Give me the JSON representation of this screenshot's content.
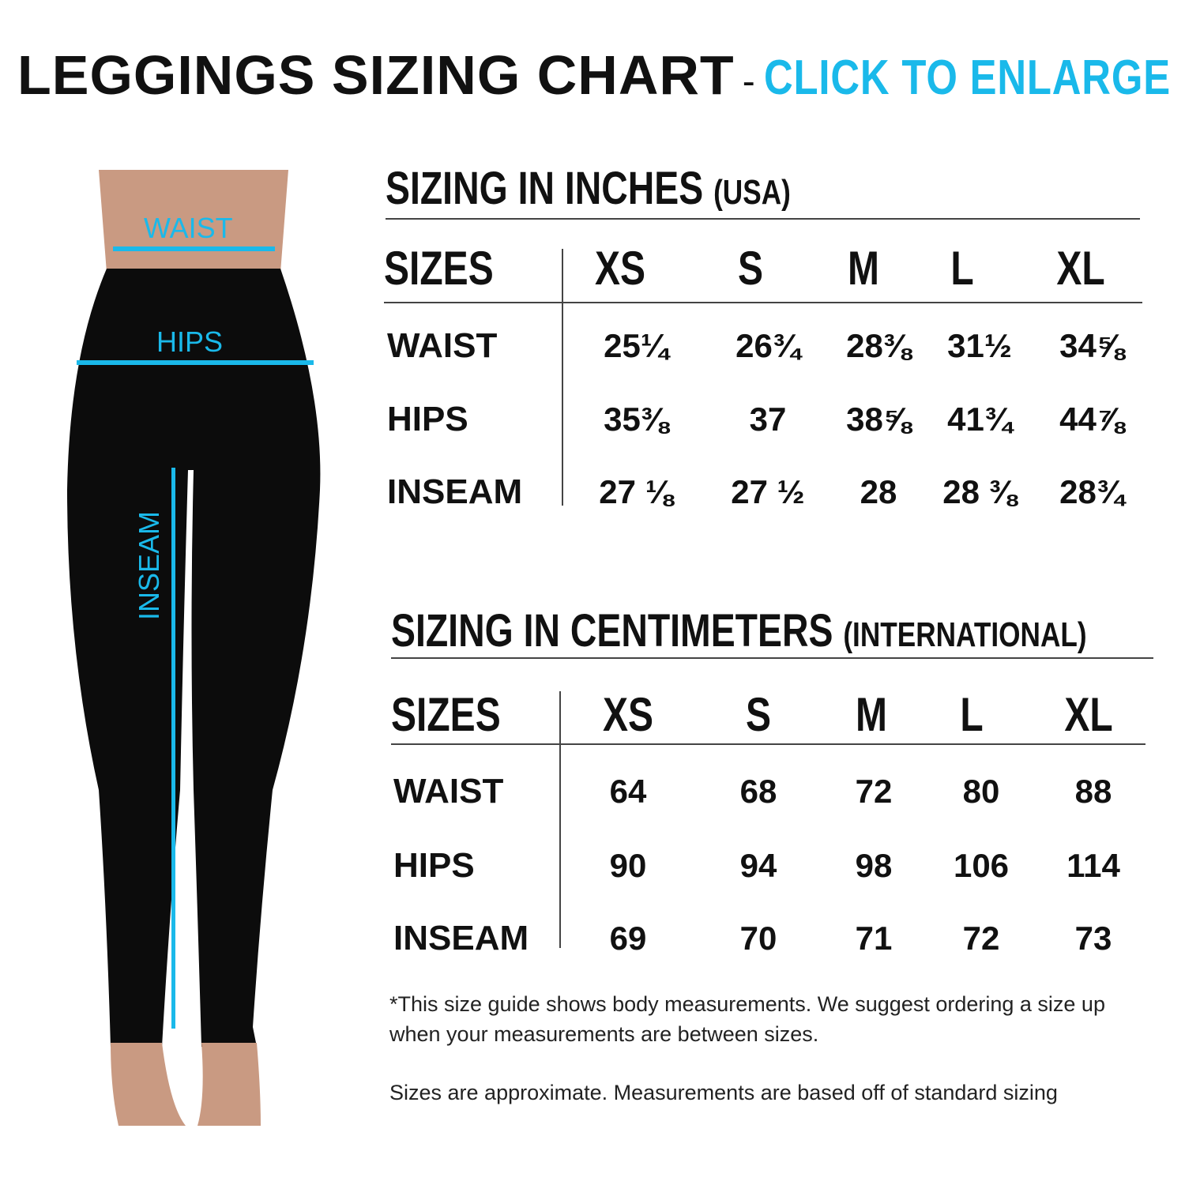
{
  "header": {
    "title": "LEGGINGS SIZING CHART",
    "separator": "-",
    "cta": "CLICK TO ENLARGE"
  },
  "colors": {
    "accent": "#1ab9ea",
    "text": "#111111"
  },
  "figure": {
    "labels": {
      "waist": "WAIST",
      "hips": "HIPS",
      "inseam": "INSEAM"
    }
  },
  "inches": {
    "title": "SIZING IN INCHES",
    "subtitle": "(USA)",
    "sizes_label": "SIZES",
    "sizes": [
      "XS",
      "S",
      "M",
      "L",
      "XL"
    ],
    "rows": [
      {
        "label": "WAIST",
        "values": [
          "25¼",
          "26¾",
          "28⅜",
          "31½",
          "34⅝"
        ]
      },
      {
        "label": "HIPS",
        "values": [
          "35⅜",
          "37",
          "38⅝",
          "41¾",
          "44⅞"
        ]
      },
      {
        "label": "INSEAM",
        "values": [
          "27 ⅛",
          "27 ½",
          "28",
          "28 ⅜",
          "28¾"
        ]
      }
    ]
  },
  "centimeters": {
    "title": "SIZING IN CENTIMETERS",
    "subtitle": "(INTERNATIONAL)",
    "sizes_label": "SIZES",
    "sizes": [
      "XS",
      "S",
      "M",
      "L",
      "XL"
    ],
    "rows": [
      {
        "label": "WAIST",
        "values": [
          "64",
          "68",
          "72",
          "80",
          "88"
        ]
      },
      {
        "label": "HIPS",
        "values": [
          "90",
          "94",
          "98",
          "106",
          "114"
        ]
      },
      {
        "label": "INSEAM",
        "values": [
          "69",
          "70",
          "71",
          "72",
          "73"
        ]
      }
    ]
  },
  "notes": {
    "guide": "*This size guide shows body measurements. We suggest ordering a size up when your measurements are between sizes.",
    "approx": "Sizes are approximate. Measurements are based off of standard sizing"
  }
}
